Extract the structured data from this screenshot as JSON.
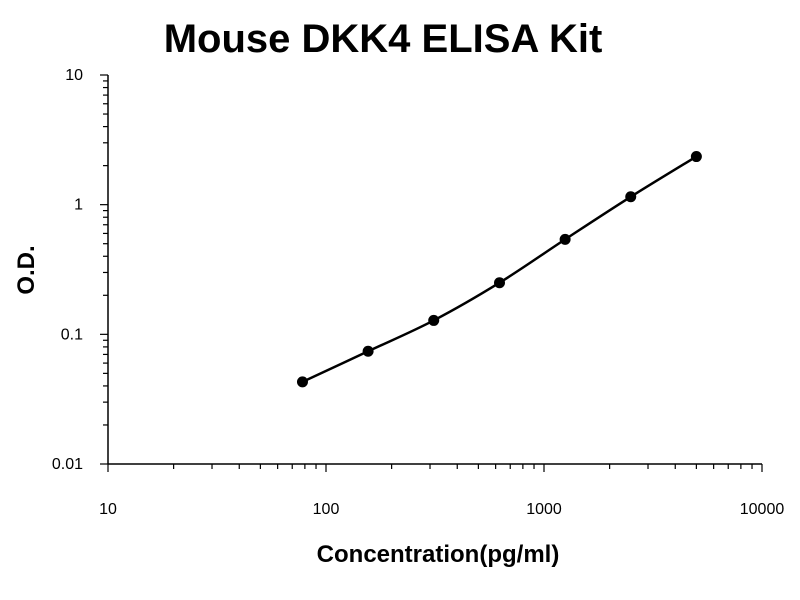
{
  "chart_data": {
    "type": "line",
    "title": "Mouse DKK4 ELISA Kit",
    "xlabel": "Concentration(pg/ml)",
    "ylabel": "O.D.",
    "x_scale": "log",
    "y_scale": "log",
    "xlim": [
      10,
      10000
    ],
    "ylim": [
      0.01,
      10
    ],
    "x_ticks": [
      "10",
      "100",
      "1000",
      "10000"
    ],
    "y_ticks": [
      "0.01",
      "0.1",
      "1",
      "10"
    ],
    "grid": false,
    "legend": "none",
    "series": [
      {
        "x": [
          78,
          156,
          312,
          625,
          1250,
          2500,
          5000
        ],
        "y": [
          0.043,
          0.074,
          0.128,
          0.25,
          0.54,
          1.15,
          2.35
        ],
        "marker": "circle",
        "color": "#000000"
      }
    ]
  }
}
